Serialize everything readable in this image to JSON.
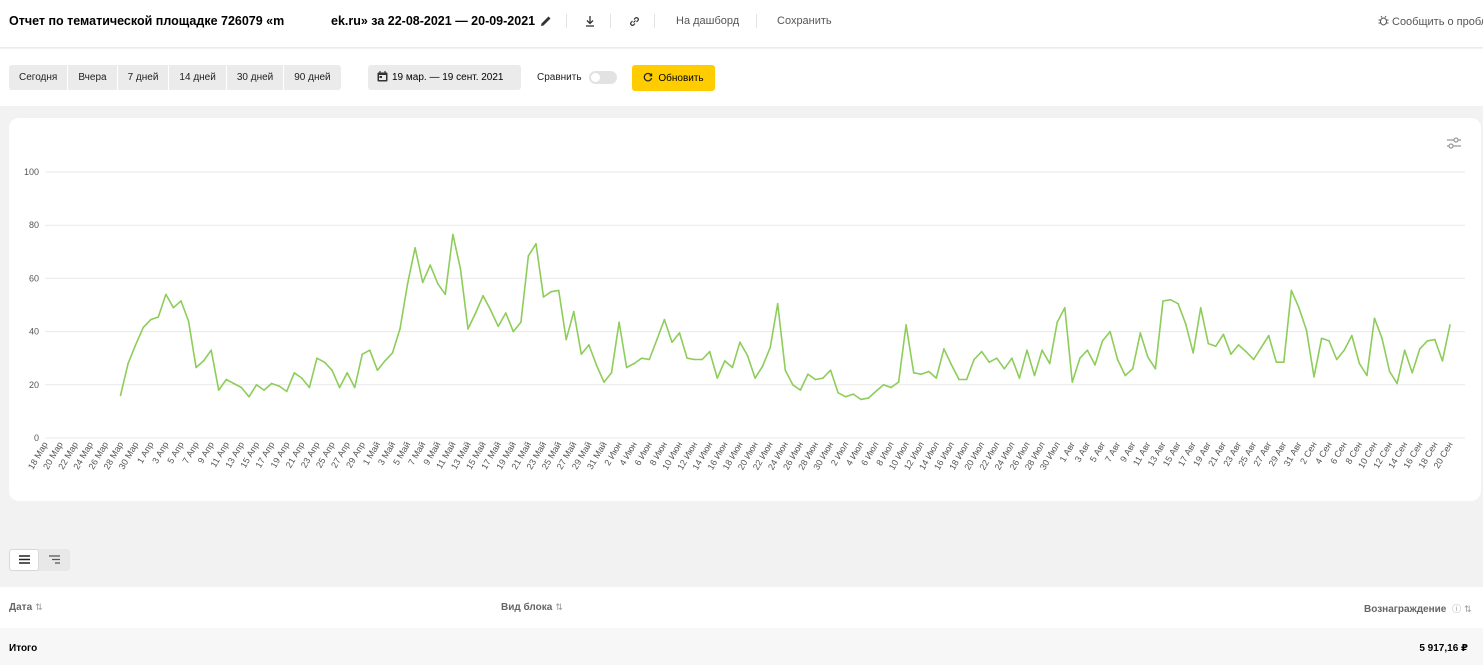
{
  "header": {
    "title_part1": "Отчет по тематической площадке 726079 «m",
    "title_part2": "ek.ru» за 22-08-2021 — 20-09-2021",
    "to_dashboard": "На дашборд",
    "save": "Сохранить",
    "report_problem": "Сообщить о пробле"
  },
  "toolbar": {
    "periods": [
      "Сегодня",
      "Вчера",
      "7 дней",
      "14 дней",
      "30 дней",
      "90 дней"
    ],
    "date_range": "19 мар. — 19 сент. 2021",
    "compare_label": "Сравнить",
    "compare_enabled": false,
    "refresh_label": "Обновить",
    "accent_color": "#ffcc00"
  },
  "chart_data": {
    "type": "line",
    "ylim": [
      0,
      100
    ],
    "yticks": [
      0,
      20,
      40,
      60,
      80,
      100
    ],
    "grid": true,
    "color": "#8dcd5a",
    "xtick_labels": [
      "18 Мар",
      "20 Мар",
      "22 Мар",
      "24 Мар",
      "26 Мар",
      "28 Мар",
      "30 Мар",
      "1 Апр",
      "3 Апр",
      "5 Апр",
      "7 Апр",
      "9 Апр",
      "11 Апр",
      "13 Апр",
      "15 Апр",
      "17 Апр",
      "19 Апр",
      "21 Апр",
      "23 Апр",
      "25 Апр",
      "27 Апр",
      "29 Апр",
      "1 Май",
      "3 Май",
      "5 Май",
      "7 Май",
      "9 Май",
      "11 Май",
      "13 Май",
      "15 Май",
      "17 Май",
      "19 Май",
      "21 Май",
      "23 Май",
      "25 Май",
      "27 Май",
      "29 Май",
      "31 Май",
      "2 Июн",
      "4 Июн",
      "6 Июн",
      "8 Июн",
      "10 Июн",
      "12 Июн",
      "14 Июн",
      "16 Июн",
      "18 Июн",
      "20 Июн",
      "22 Июн",
      "24 Июн",
      "26 Июн",
      "28 Июн",
      "30 Июн",
      "2 Июл",
      "4 Июл",
      "6 Июл",
      "8 Июл",
      "10 Июл",
      "12 Июл",
      "14 Июл",
      "16 Июл",
      "18 Июл",
      "20 Июл",
      "22 Июл",
      "24 Июл",
      "26 Июл",
      "28 Июл",
      "30 Июл",
      "1 Авг",
      "3 Авг",
      "5 Авг",
      "7 Авг",
      "9 Авг",
      "11 Авг",
      "13 Авг",
      "15 Авг",
      "17 Авг",
      "19 Авг",
      "21 Авг",
      "23 Авг",
      "25 Авг",
      "27 Авг",
      "29 Авг",
      "31 Авг",
      "2 Сен",
      "4 Сен",
      "6 Сен",
      "8 Сен",
      "10 Сен",
      "12 Сен",
      "14 Сен",
      "16 Сен",
      "18 Сен",
      "20 Сен"
    ],
    "series": [
      {
        "start_day_index": 10,
        "values": [
          16,
          28,
          35,
          41.5,
          44.5,
          45.5,
          54,
          49,
          51.5,
          44,
          26.5,
          29,
          33,
          18,
          22,
          20.5,
          19,
          15.5,
          20,
          18,
          20.5,
          19.5,
          17.5,
          24.5,
          22.5,
          19,
          30,
          28.5,
          25.5,
          19,
          24.5,
          19,
          31.5,
          33,
          25.5,
          29,
          32,
          41,
          58,
          71.5,
          58.5,
          65,
          58,
          54,
          76.5,
          63.5,
          41,
          47,
          53.5,
          48,
          42,
          47,
          40,
          43.5,
          68.5,
          73,
          53,
          55,
          55.5,
          37,
          47.5,
          31.5,
          35,
          27.5,
          21,
          24.5,
          43.5,
          26.5,
          28,
          30,
          29.5,
          37,
          44.5,
          36,
          39.5,
          30,
          29.5,
          29.5,
          32.5,
          22.5,
          29,
          26.5,
          36,
          31,
          22.5,
          27,
          34,
          50.5,
          25.5,
          20,
          18,
          24,
          22,
          22.5,
          25.5,
          17,
          15.5,
          16.5,
          14.5,
          15,
          17.5,
          20,
          19,
          21,
          42.5,
          24.5,
          24,
          25,
          22.5,
          33.5,
          27.5,
          22,
          22,
          29.5,
          32.5,
          28.5,
          30,
          26,
          30,
          22.5,
          33,
          23.5,
          33,
          28,
          43.5,
          49,
          21,
          30,
          33,
          27.5,
          36.5,
          40,
          29.5,
          23.5,
          26,
          39.5,
          30.5,
          26,
          51.5,
          52,
          50.5,
          43,
          32,
          49,
          35.5,
          34.5,
          39,
          31.5,
          35,
          32.5,
          29.5,
          34,
          38.5,
          28.5,
          28.5,
          55.5,
          49,
          40.5,
          23,
          37.5,
          36.5,
          29.5,
          33,
          38.5,
          28,
          23.5,
          45,
          37.5,
          25,
          20.5,
          33,
          24.5,
          33.5,
          36.5,
          37,
          29,
          42.5
        ]
      }
    ]
  },
  "view_modes": [
    "list-icon",
    "tree-icon"
  ],
  "table": {
    "columns": [
      "Дата",
      "Вид блока",
      "Вознаграждение"
    ],
    "total_label": "Итого",
    "total_value": "5 917,16 ₽"
  }
}
